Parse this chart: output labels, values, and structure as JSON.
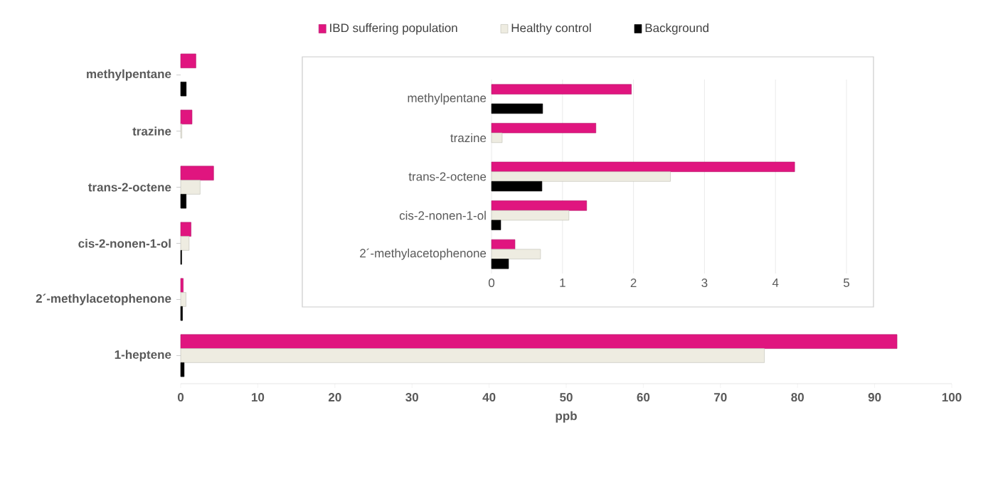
{
  "chart_data": [
    {
      "type": "bar",
      "orientation": "horizontal",
      "xlabel": "ppb",
      "categories": [
        "methylpentane",
        "trazine",
        "trans-2-octene",
        "cis-2-nonen-1-ol",
        "2´-methylacetophenone",
        "1-heptene"
      ],
      "series": [
        {
          "name": "IBD suffering population",
          "color": "#e0157f",
          "values": [
            1.97,
            1.47,
            4.27,
            1.34,
            0.33,
            92.9
          ]
        },
        {
          "name": "Healthy control",
          "color": "#eeece1",
          "values": [
            null,
            0.15,
            2.52,
            1.09,
            0.69,
            75.7
          ]
        },
        {
          "name": "Background",
          "color": "#000000",
          "values": [
            0.72,
            null,
            0.71,
            0.13,
            0.24,
            0.45
          ]
        }
      ],
      "xlim": [
        0,
        100
      ],
      "xticks": [
        0,
        10,
        20,
        30,
        40,
        50,
        60,
        70,
        80,
        90,
        100
      ],
      "legend": "top",
      "grid": false
    },
    {
      "type": "bar",
      "orientation": "horizontal",
      "categories": [
        "methylpentane",
        "trazine",
        "trans-2-octene",
        "cis-2-nonen-1-ol",
        "2´-methylacetophenone"
      ],
      "series": [
        {
          "color": "#e0157f",
          "values": [
            1.97,
            1.47,
            4.27,
            1.34,
            0.33
          ]
        },
        {
          "color": "#eeece1",
          "values": [
            null,
            0.15,
            2.52,
            1.09,
            0.69
          ]
        },
        {
          "color": "#000000",
          "values": [
            0.72,
            null,
            0.71,
            0.13,
            0.24
          ]
        }
      ],
      "xlim": [
        0,
        5
      ],
      "xticks": [
        0,
        1,
        2,
        3,
        4,
        5
      ],
      "grid": "x"
    }
  ]
}
